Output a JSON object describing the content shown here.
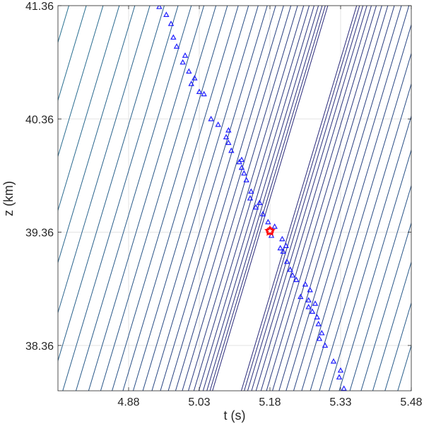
{
  "chart_data": {
    "type": "contour-scatter",
    "xlabel": "t (s)",
    "ylabel": "z (km)",
    "xlim": [
      4.73,
      5.48
    ],
    "ylim": [
      41.36,
      37.96
    ],
    "y_reversed": true,
    "x_ticks": [
      4.88,
      5.03,
      5.18,
      5.33,
      5.48
    ],
    "x_tick_labels": [
      "4.88",
      "5.03",
      "5.18",
      "5.33",
      "5.48"
    ],
    "y_ticks": [
      38.36,
      39.36,
      40.36,
      41.36
    ],
    "y_tick_labels": [
      "38.36",
      "39.36",
      "40.36",
      "41.36"
    ],
    "grid": true,
    "contour": {
      "levels_left": 50,
      "levels_right": 44,
      "color_low": "#2a2a7a",
      "color_high": "#27b0a6"
    },
    "samples": {
      "marker": "triangle",
      "color": "#1f1fff",
      "points": [
        [
          5.337,
          37.98
        ],
        [
          5.327,
          38.08
        ],
        [
          5.33,
          38.14
        ],
        [
          5.315,
          38.22
        ],
        [
          5.297,
          38.36
        ],
        [
          5.285,
          38.42
        ],
        [
          5.29,
          38.47
        ],
        [
          5.283,
          38.55
        ],
        [
          5.28,
          38.61
        ],
        [
          5.27,
          38.66
        ],
        [
          5.262,
          38.7
        ],
        [
          5.276,
          38.73
        ],
        [
          5.262,
          38.76
        ],
        [
          5.245,
          38.79
        ],
        [
          5.265,
          38.85
        ],
        [
          5.255,
          38.9
        ],
        [
          5.236,
          38.94
        ],
        [
          5.228,
          38.98
        ],
        [
          5.223,
          39.03
        ],
        [
          5.216,
          39.1
        ],
        [
          5.208,
          39.19
        ],
        [
          5.202,
          39.22
        ],
        [
          5.214,
          39.24
        ],
        [
          5.206,
          39.3
        ],
        [
          5.183,
          39.33
        ],
        [
          5.19,
          39.41
        ],
        [
          5.176,
          39.45
        ],
        [
          5.165,
          39.52
        ],
        [
          5.15,
          39.58
        ],
        [
          5.158,
          39.62
        ],
        [
          5.138,
          39.66
        ],
        [
          5.14,
          39.72
        ],
        [
          5.13,
          39.82
        ],
        [
          5.125,
          39.88
        ],
        [
          5.12,
          39.93
        ],
        [
          5.115,
          39.98
        ],
        [
          5.12,
          40.0
        ],
        [
          5.098,
          40.08
        ],
        [
          5.092,
          40.15
        ],
        [
          5.087,
          40.2
        ],
        [
          5.092,
          40.26
        ],
        [
          5.07,
          40.31
        ],
        [
          5.055,
          40.36
        ],
        [
          5.04,
          40.58
        ],
        [
          5.03,
          40.6
        ],
        [
          5.013,
          40.67
        ],
        [
          5.02,
          40.72
        ],
        [
          5.008,
          40.78
        ],
        [
          4.995,
          40.86
        ],
        [
          5.0,
          40.92
        ],
        [
          4.982,
          41.0
        ],
        [
          4.975,
          41.08
        ],
        [
          4.97,
          41.2
        ],
        [
          4.96,
          41.28
        ],
        [
          4.945,
          41.35
        ]
      ]
    },
    "best_estimate": {
      "t": 5.18,
      "z": 39.37,
      "marker": "star",
      "color": "#ff0000"
    }
  }
}
